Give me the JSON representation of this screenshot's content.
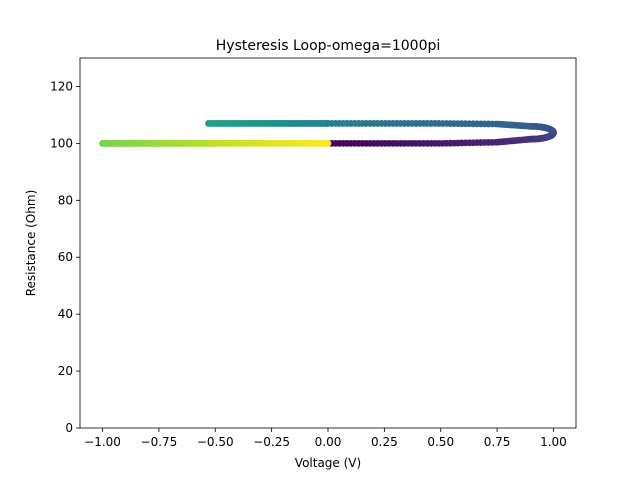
{
  "chart_data": {
    "type": "scatter",
    "title": "Hysteresis Loop-omega=1000pi",
    "xlabel": "Voltage (V)",
    "ylabel": "Resistance (Ohm)",
    "xlim": [
      -1.1,
      1.1
    ],
    "ylim": [
      0,
      130
    ],
    "xticks": [
      -1.0,
      -0.75,
      -0.5,
      -0.25,
      0.0,
      0.25,
      0.5,
      0.75,
      1.0
    ],
    "xtick_labels": [
      "−1.00",
      "−0.75",
      "−0.50",
      "−0.25",
      "0.00",
      "0.25",
      "0.50",
      "0.75",
      "1.00"
    ],
    "yticks": [
      0,
      20,
      40,
      60,
      80,
      100,
      120
    ],
    "ytick_labels": [
      "0",
      "20",
      "40",
      "60",
      "80",
      "100",
      "120"
    ],
    "grid": false,
    "colormap": "viridis",
    "segments": [
      {
        "x": [
          0.0,
          0.25,
          0.5,
          0.75,
          0.9
        ],
        "y": [
          100,
          100,
          100,
          100.4,
          101.5
        ],
        "color_start": "#440154",
        "color_end": "#46327e"
      },
      {
        "x": [
          0.9,
          1.0,
          0.9
        ],
        "y": [
          101.5,
          103.5,
          106
        ],
        "color_start": "#46327e",
        "color_end": "#365c8d"
      },
      {
        "x": [
          0.9,
          0.75,
          0.5,
          0.25,
          0.0
        ],
        "y": [
          106,
          106.8,
          107,
          107,
          107
        ],
        "color_start": "#365c8d",
        "color_end": "#277f8e"
      },
      {
        "x": [
          0.0,
          -0.25,
          -0.53
        ],
        "y": [
          107,
          107,
          107
        ],
        "color_start": "#277f8e",
        "color_end": "#1fa187"
      },
      {
        "x": [
          -0.5,
          -0.75,
          -1.0
        ],
        "y": [
          100,
          100,
          100
        ],
        "color_start": "#4ac16d",
        "color_end": "#7ad151"
      },
      {
        "x": [
          -1.0,
          -0.75,
          -0.5
        ],
        "y": [
          100,
          100,
          100
        ],
        "color_start": "#7ad151",
        "color_end": "#bddf26"
      },
      {
        "x": [
          -0.5,
          -0.25,
          0.0
        ],
        "y": [
          100,
          100,
          100
        ],
        "color_start": "#bddf26",
        "color_end": "#fde725"
      }
    ]
  }
}
